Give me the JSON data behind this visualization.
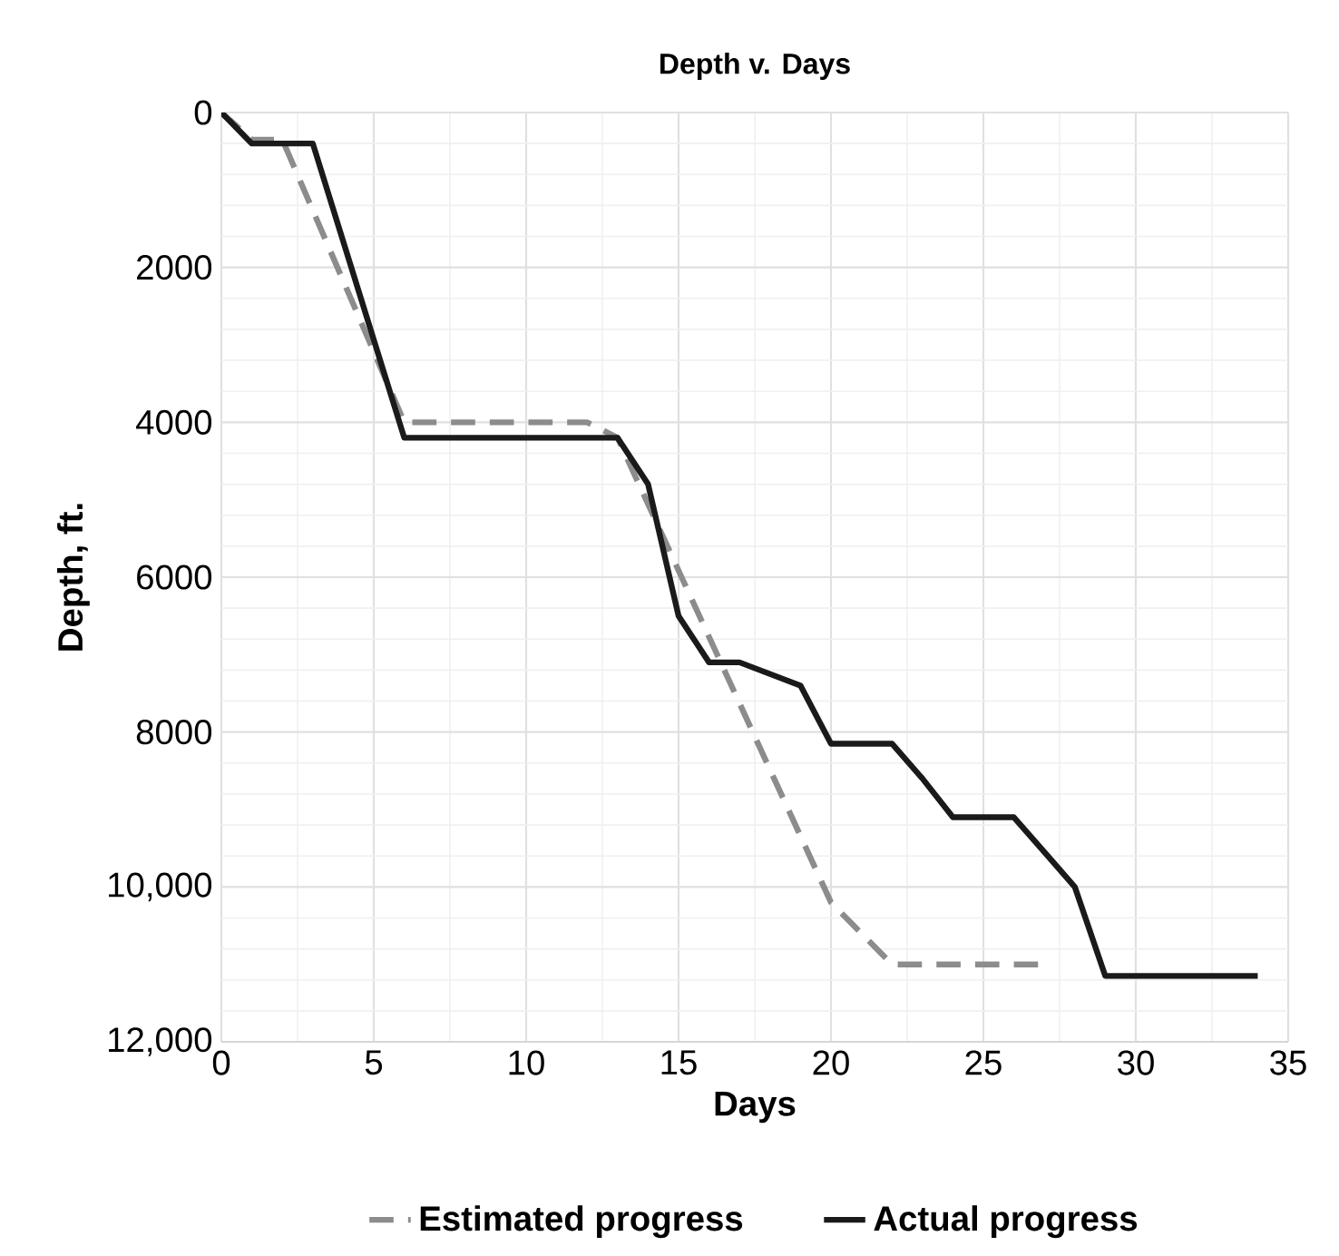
{
  "chart_data": {
    "type": "line",
    "title": "Depth v. Days",
    "xlabel": "Days",
    "ylabel": "Depth, ft.",
    "xlim": [
      0,
      35
    ],
    "xticks": [
      0,
      5,
      10,
      15,
      20,
      25,
      30,
      35
    ],
    "ylim": [
      12000,
      0
    ],
    "yticks": [
      0,
      2000,
      4000,
      6000,
      8000,
      {
        "value": 10000,
        "label": "10,000"
      },
      {
        "value": 12000,
        "label": "12,000"
      }
    ],
    "grid": true,
    "legend": "bottom",
    "series": [
      {
        "name": "Estimated progress",
        "color": "#8c8c8c",
        "line_style": "dashed",
        "x": [
          0,
          1,
          2,
          6,
          12,
          13,
          20,
          22,
          27
        ],
        "values": [
          0,
          350,
          350,
          4000,
          4000,
          4200,
          10200,
          11000,
          11000
        ]
      },
      {
        "name": "Actual progress",
        "color": "#1a1a1a",
        "line_style": "solid",
        "x": [
          0,
          1,
          3,
          6,
          13,
          14,
          15,
          16,
          17,
          19,
          20,
          22,
          23,
          24,
          26,
          27,
          28,
          29,
          34
        ],
        "values": [
          0,
          400,
          400,
          4200,
          4200,
          4800,
          6500,
          7100,
          7100,
          7400,
          8150,
          8150,
          8600,
          9100,
          9100,
          9550,
          10000,
          11150,
          11150
        ]
      }
    ]
  }
}
